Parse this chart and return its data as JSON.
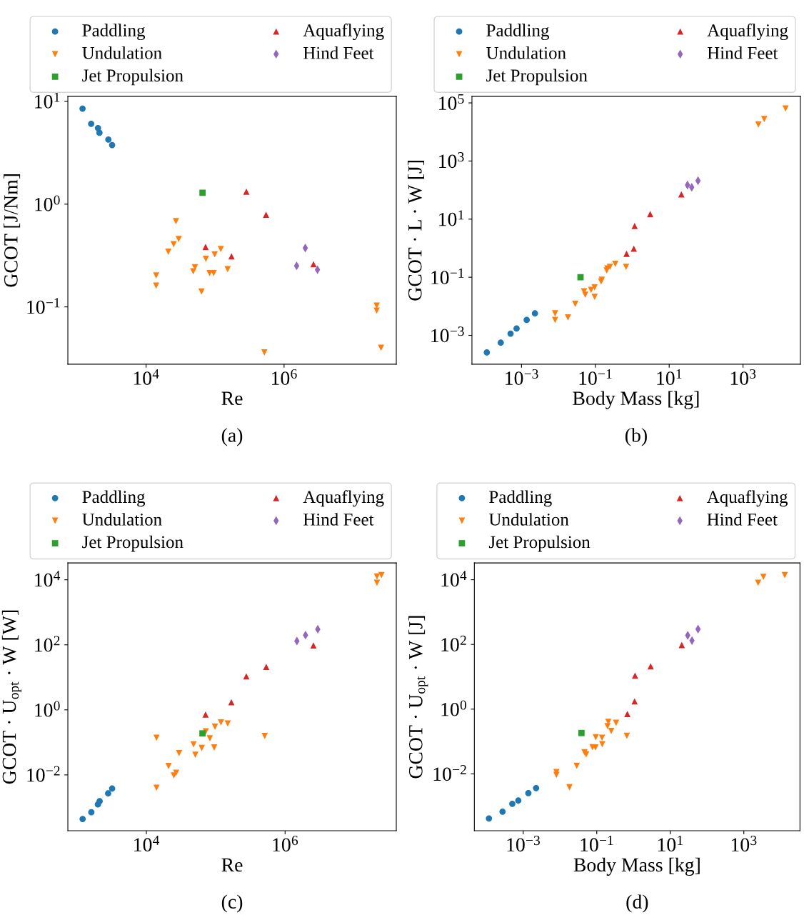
{
  "chart_data": [
    {
      "type": "scatter",
      "xlabel": "Re",
      "ylabel": "GCOT [J/Nm]",
      "log": "xy",
      "legend": "top",
      "annotations": [
        "(a)"
      ],
      "xlim": [
        735,
        42300000
      ],
      "ylim": [
        0.0277,
        11.2
      ],
      "xticks": [
        {
          "value": 10000,
          "label": "10$^{4}$"
        },
        {
          "value": 1000000,
          "label": "10$^{6}$"
        }
      ],
      "yticks": [
        {
          "value": 0.1,
          "label": "10$^{−1}$"
        },
        {
          "value": 1,
          "label": "10$^{0}$"
        },
        {
          "value": 10,
          "label": "10$^{1}$"
        }
      ],
      "series": [
        {
          "name": "Paddling",
          "color": "#1f77b4",
          "marker": "circle",
          "x": [
            1200,
            1600,
            2010,
            2110,
            2840,
            3220
          ],
          "values": [
            8.5,
            6.05,
            5.5,
            4.95,
            4.25,
            3.76
          ]
        },
        {
          "name": "Undulation",
          "color": "#ff7f0e",
          "marker": "triangle_down",
          "x": [
            14000,
            14000,
            21000,
            25100,
            27100,
            29700,
            48200,
            51100,
            63600,
            73500,
            83400,
            95400,
            98700,
            121000,
            152000,
            518000,
            22000000,
            22000000,
            25400000
          ],
          "values": [
            0.202,
            0.161,
            0.344,
            0.408,
            0.682,
            0.457,
            0.222,
            0.243,
            0.141,
            0.294,
            0.213,
            0.213,
            0.324,
            0.366,
            0.233,
            0.036,
            0.103,
            0.092,
            0.04
          ]
        },
        {
          "name": "Jet Propulsion",
          "color": "#2ca02c",
          "marker": "square",
          "x": [
            65800
          ],
          "values": [
            1.29
          ]
        },
        {
          "name": "Aquaflying",
          "color": "#d62728",
          "marker": "triangle",
          "x": [
            284000,
            548000,
            72800,
            173000,
            2670000
          ],
          "values": [
            1.32,
            0.79,
            0.383,
            0.31,
            0.26
          ]
        },
        {
          "name": "Hind Feet",
          "color": "#9467bd",
          "marker": "diamond",
          "x": [
            1520000,
            2030000,
            3050000
          ],
          "values": [
            0.251,
            0.374,
            0.23
          ]
        }
      ]
    },
    {
      "type": "scatter",
      "xlabel": "Body Mass [kg]",
      "ylabel": "GCOT · L · W [J]",
      "log": "xy",
      "legend": "top",
      "annotations": [
        "(b)"
      ],
      "xlim": [
        4.54e-05,
        35800
      ],
      "ylim": [
        0.000102,
        168000
      ],
      "xticks": [
        {
          "value": 0.001,
          "label": "10$^{−3}$"
        },
        {
          "value": 0.1,
          "label": "10$^{−1}$"
        },
        {
          "value": 10,
          "label": "10$^{1}$"
        },
        {
          "value": 1000,
          "label": "10$^{3}$"
        }
      ],
      "yticks": [
        {
          "value": 0.001,
          "label": "10$^{−3}$"
        },
        {
          "value": 0.1,
          "label": "10$^{−1}$"
        },
        {
          "value": 10,
          "label": "10$^{1}$"
        },
        {
          "value": 1000,
          "label": "10$^{3}$"
        },
        {
          "value": 100000,
          "label": "10$^{5}$"
        }
      ],
      "series": [
        {
          "name": "Paddling",
          "color": "#1f77b4",
          "marker": "circle",
          "x": [
            0.000115,
            0.000274,
            0.000505,
            0.000735,
            0.00138,
            0.00231
          ],
          "values": [
            0.00026,
            0.00056,
            0.00115,
            0.00172,
            0.00339,
            0.0057
          ]
        },
        {
          "name": "Undulation",
          "color": "#ff7f0e",
          "marker": "triangle_down",
          "x": [
            0.00811,
            0.00811,
            0.0181,
            0.0285,
            0.0494,
            0.0534,
            0.0766,
            0.0955,
            0.0955,
            0.1435,
            0.15,
            0.203,
            0.212,
            0.248,
            0.346,
            0.679,
            2610,
            3750,
            14200
          ],
          "values": [
            0.0057,
            0.00339,
            0.00414,
            0.0122,
            0.0326,
            0.0251,
            0.0367,
            0.0449,
            0.021,
            0.0712,
            0.0818,
            0.172,
            0.201,
            0.227,
            0.289,
            0.227,
            17900,
            27700,
            64400
          ]
        },
        {
          "name": "Jet Propulsion",
          "color": "#2ca02c",
          "marker": "square",
          "x": [
            0.0396
          ],
          "values": [
            0.1
          ]
        },
        {
          "name": "Aquaflying",
          "color": "#d62728",
          "marker": "triangle",
          "x": [
            0.7,
            1.1,
            1.16,
            3.06,
            21.4
          ],
          "values": [
            0.644,
            0.96,
            5.82,
            14.9,
            71
          ]
        },
        {
          "name": "Hind Feet",
          "color": "#9467bd",
          "marker": "diamond",
          "x": [
            31.3,
            40.8,
            60.4
          ],
          "values": [
            149,
            125,
            210
          ]
        }
      ]
    },
    {
      "type": "scatter",
      "xlabel": "Re",
      "ylabel": "GCOT · U$_{opt}$ · W [W]",
      "log": "xy",
      "legend": "top",
      "annotations": [
        "(c)"
      ],
      "xlim": [
        738,
        40100000
      ],
      "ylim": [
        0.000192,
        33000
      ],
      "xticks": [
        {
          "value": 10000,
          "label": "10$^{4}$"
        },
        {
          "value": 1000000,
          "label": "10$^{6}$"
        }
      ],
      "yticks": [
        {
          "value": 0.01,
          "label": "10$^{−2}$"
        },
        {
          "value": 1,
          "label": "10$^{0}$"
        },
        {
          "value": 100,
          "label": "10$^{2}$"
        },
        {
          "value": 10000,
          "label": "10$^{4}$"
        }
      ],
      "series": [
        {
          "name": "Paddling",
          "color": "#1f77b4",
          "marker": "circle",
          "x": [
            1205,
            1610,
            2000,
            2120,
            2810,
            3210
          ],
          "values": [
            0.00044,
            0.00071,
            0.00124,
            0.00155,
            0.0027,
            0.0038
          ]
        },
        {
          "name": "Undulation",
          "color": "#ff7f0e",
          "marker": "triangle_down",
          "x": [
            14000,
            14000,
            20900,
            24900,
            26900,
            29600,
            47900,
            50800,
            62800,
            71900,
            82300,
            95000,
            97600,
            119000,
            149000,
            508000,
            21100000,
            21100000,
            24500000
          ],
          "values": [
            0.139,
            0.004,
            0.0189,
            0.0096,
            0.0116,
            0.0467,
            0.0865,
            0.0419,
            0.067,
            0.218,
            0.134,
            0.0696,
            0.302,
            0.411,
            0.383,
            0.157,
            8050,
            12600,
            13900
          ]
        },
        {
          "name": "Jet Propulsion",
          "color": "#2ca02c",
          "marker": "square",
          "x": [
            64400
          ],
          "values": [
            0.189
          ]
        },
        {
          "name": "Aquaflying",
          "color": "#d62728",
          "marker": "triangle",
          "x": [
            71300,
            168000,
            276000,
            535000,
            2560000
          ],
          "values": [
            0.72,
            1.72,
            10.7,
            21,
            96
          ]
        },
        {
          "name": "Hind Feet",
          "color": "#9467bd",
          "marker": "diamond",
          "x": [
            1480000,
            1970000,
            2960000
          ],
          "values": [
            131,
            199,
            302
          ]
        }
      ]
    },
    {
      "type": "scatter",
      "xlabel": "Body Mass [kg]",
      "ylabel": "GCOT · U$_{opt}$ · W [J]",
      "log": "xy",
      "legend": "top",
      "annotations": [
        "(d)"
      ],
      "xlim": [
        4.69e-05,
        33650
      ],
      "ylim": [
        0.000175,
        33000
      ],
      "xticks": [
        {
          "value": 0.001,
          "label": "10$^{−3}$"
        },
        {
          "value": 0.1,
          "label": "10$^{−1}$"
        },
        {
          "value": 10,
          "label": "10$^{1}$"
        },
        {
          "value": 1000,
          "label": "10$^{3}$"
        }
      ],
      "yticks": [
        {
          "value": 0.01,
          "label": "10$^{−2}$"
        },
        {
          "value": 1,
          "label": "10$^{0}$"
        },
        {
          "value": 100,
          "label": "10$^{2}$"
        },
        {
          "value": 10000,
          "label": "10$^{4}$"
        }
      ],
      "series": [
        {
          "name": "Paddling",
          "color": "#1f77b4",
          "marker": "circle",
          "x": [
            0.000117,
            0.000274,
            0.000505,
            0.000735,
            0.00138,
            0.00224
          ],
          "values": [
            0.00042,
            0.00068,
            0.00119,
            0.0015,
            0.00254,
            0.00364
          ]
        },
        {
          "name": "Undulation",
          "color": "#ff7f0e",
          "marker": "triangle_down",
          "x": [
            0.008,
            0.008,
            0.0181,
            0.0285,
            0.0464,
            0.0517,
            0.0766,
            0.0924,
            0.094,
            0.141,
            0.139,
            0.196,
            0.206,
            0.248,
            0.335,
            0.658,
            2450,
            3410,
            12970
          ],
          "values": [
            0.0113,
            0.0093,
            0.00384,
            0.0178,
            0.0465,
            0.0402,
            0.0667,
            0.0654,
            0.135,
            0.0827,
            0.13,
            0.298,
            0.405,
            0.211,
            0.377,
            0.15,
            8050,
            12200,
            13800
          ]
        },
        {
          "name": "Jet Propulsion",
          "color": "#2ca02c",
          "marker": "square",
          "x": [
            0.0384
          ],
          "values": [
            0.183
          ]
        },
        {
          "name": "Aquaflying",
          "color": "#d62728",
          "marker": "triangle",
          "x": [
            0.679,
            1.07,
            1.1,
            2.92,
            20.5
          ],
          "values": [
            0.71,
            1.75,
            10.8,
            21.1,
            96
          ]
        },
        {
          "name": "Hind Feet",
          "color": "#9467bd",
          "marker": "diamond",
          "x": [
            29.8,
            38.9,
            56.8
          ],
          "values": [
            191,
            131,
            296
          ]
        }
      ]
    }
  ]
}
